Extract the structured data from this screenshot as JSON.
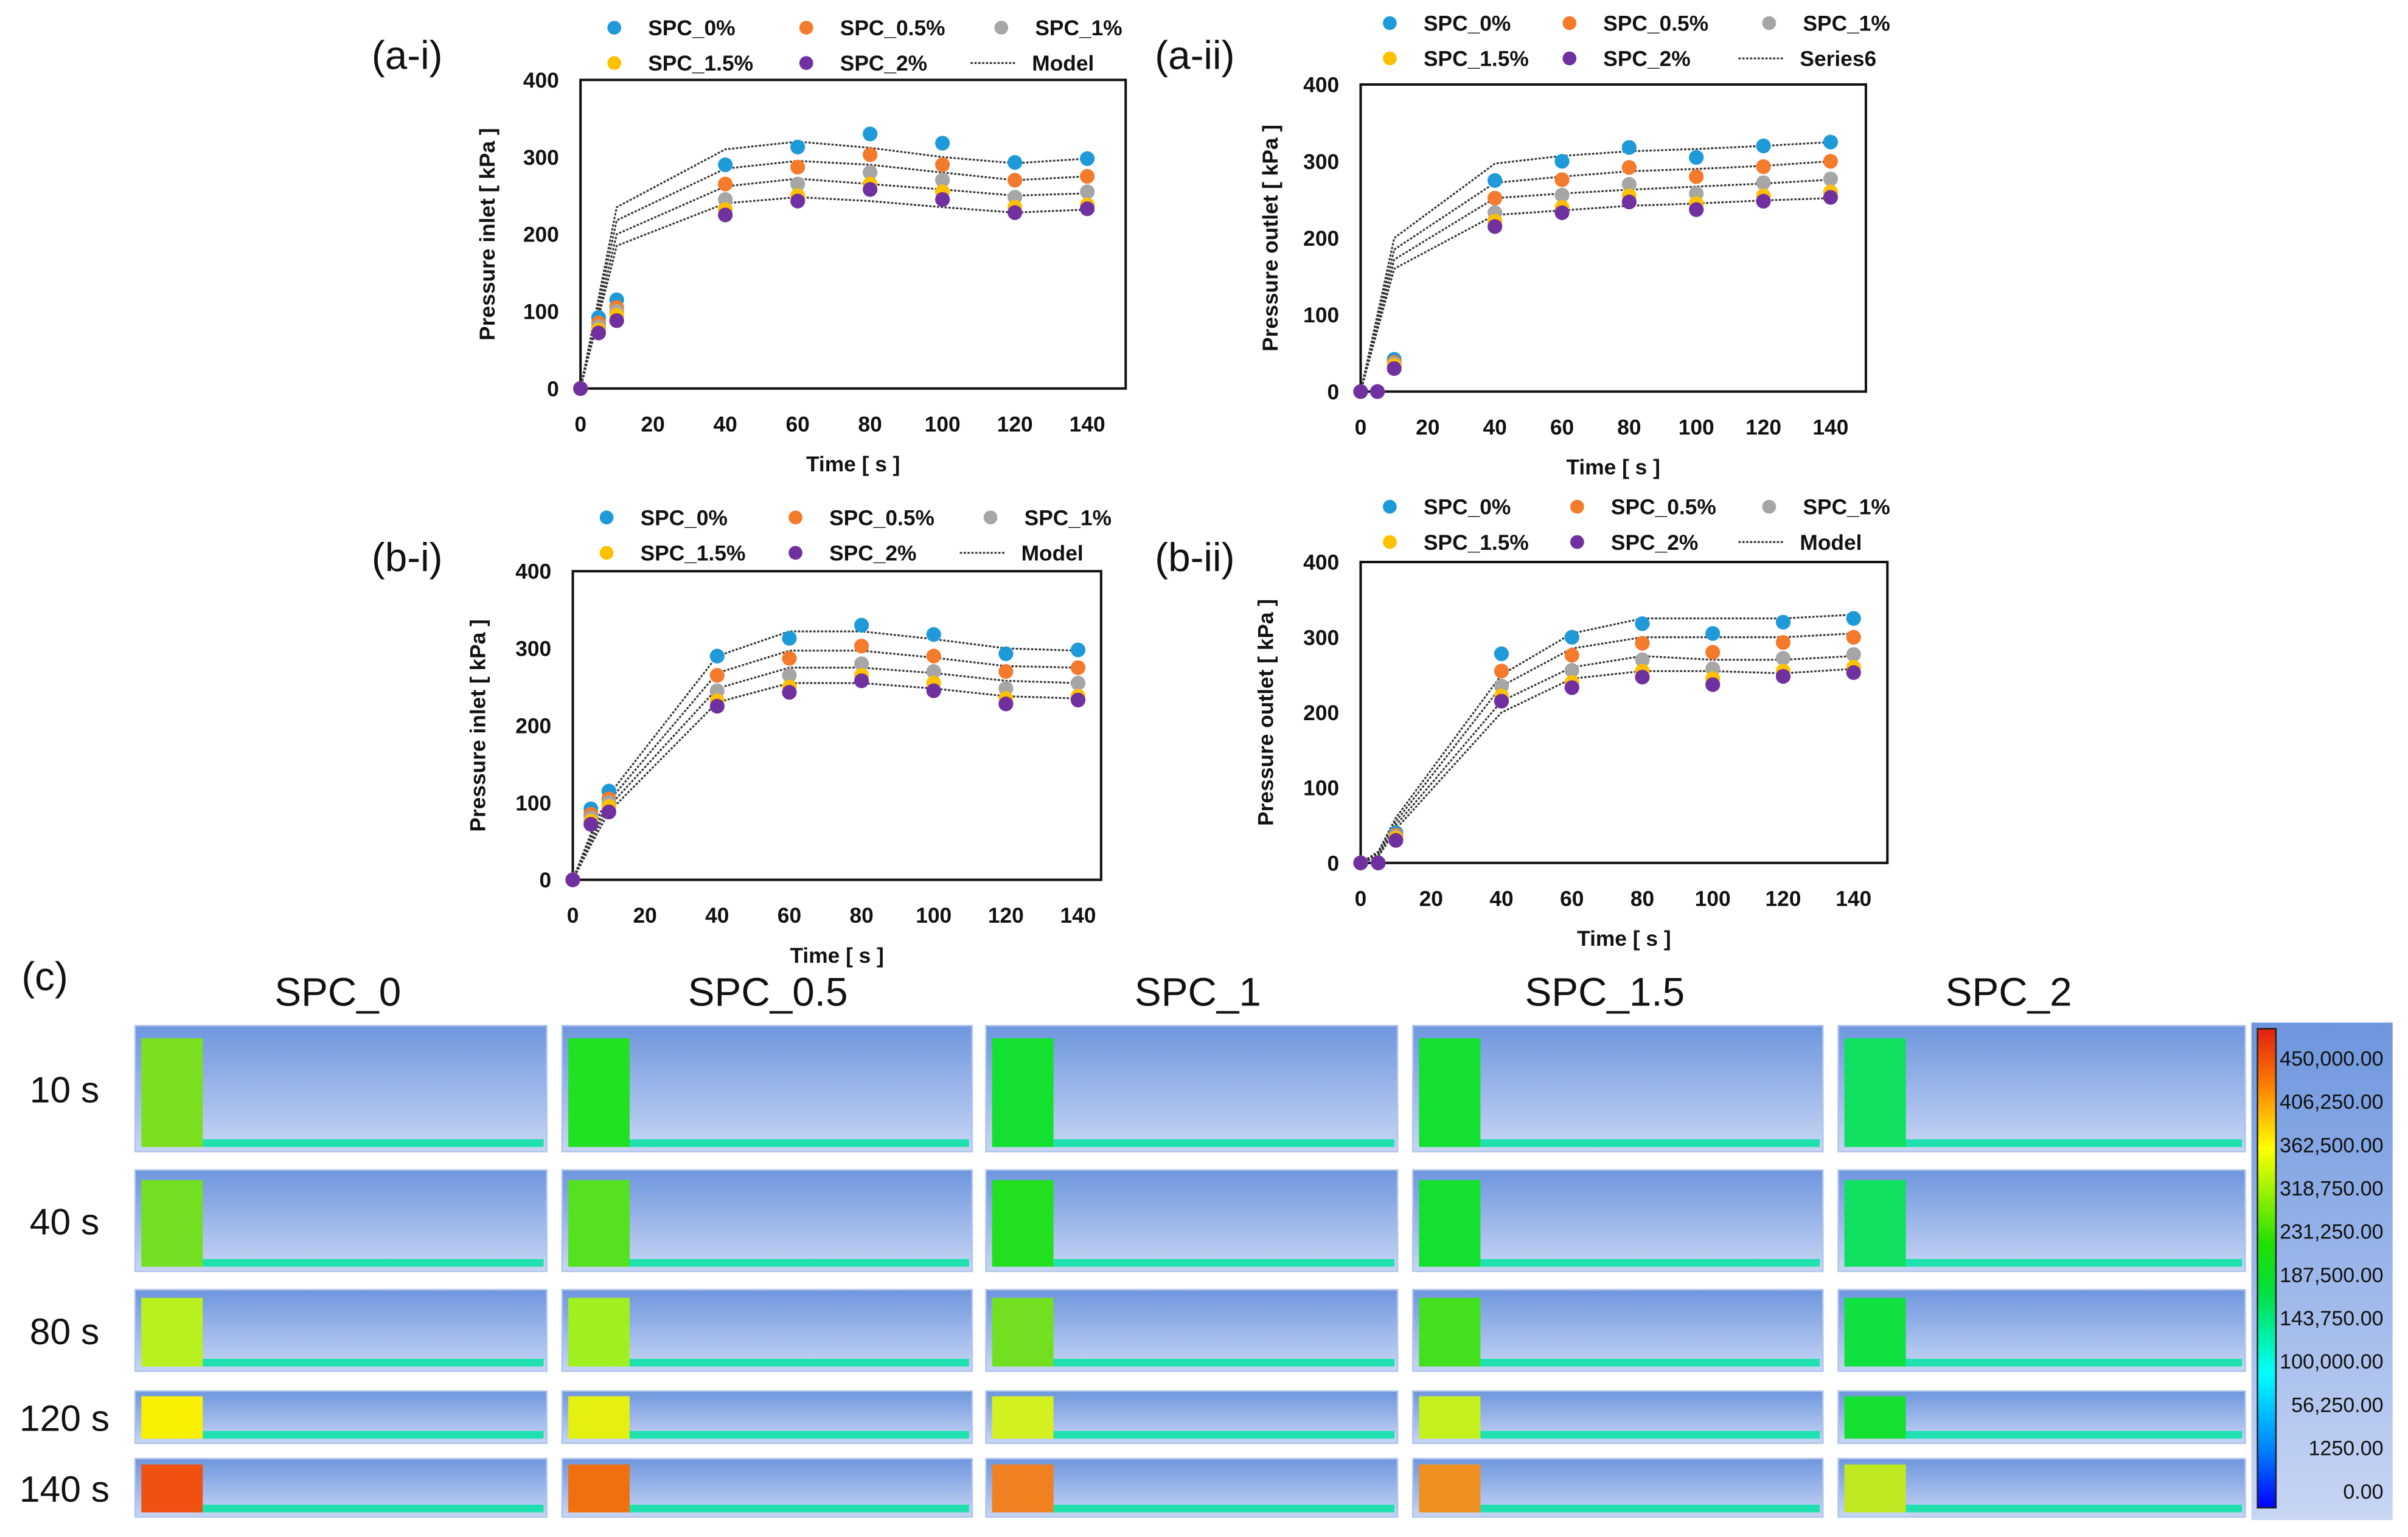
{
  "colors": {
    "SPC_0%": "#1f9ad8",
    "SPC_0.5%": "#f47a2c",
    "SPC_1%": "#a6a6a6",
    "SPC_1.5%": "#ffc000",
    "SPC_2%": "#7030a0",
    "model": "#333333"
  },
  "chart_data": [
    {
      "id": "a-i",
      "type": "scatter",
      "panel_label": "(a-i)",
      "xlabel": "Time [ s ]",
      "ylabel": "Pressure inlet [ kPa ]",
      "xlim": [
        0,
        150
      ],
      "ylim": [
        0,
        400
      ],
      "xticks": [
        "0",
        "20",
        "40",
        "60",
        "80",
        "100",
        "120",
        "140"
      ],
      "yticks": [
        "0",
        "100",
        "200",
        "300",
        "400"
      ],
      "model_label": "Model",
      "x": [
        0,
        5,
        10,
        40,
        60,
        80,
        100,
        120,
        140
      ],
      "series": [
        {
          "name": "SPC_0%",
          "values": [
            0,
            92,
            115,
            290,
            313,
            330,
            318,
            293,
            298
          ]
        },
        {
          "name": "SPC_0.5%",
          "values": [
            0,
            85,
            105,
            265,
            287,
            303,
            290,
            270,
            275
          ]
        },
        {
          "name": "SPC_1%",
          "values": [
            0,
            80,
            100,
            245,
            265,
            280,
            270,
            248,
            255
          ]
        },
        {
          "name": "SPC_1.5%",
          "values": [
            0,
            76,
            95,
            232,
            250,
            265,
            255,
            235,
            238
          ]
        },
        {
          "name": "SPC_2%",
          "values": [
            0,
            72,
            88,
            225,
            243,
            258,
            245,
            228,
            233
          ]
        }
      ],
      "model_x": [
        0,
        10,
        40,
        60,
        80,
        100,
        120,
        140
      ],
      "model": [
        [
          0,
          235,
          310,
          320,
          312,
          300,
          292,
          298
        ],
        [
          0,
          218,
          285,
          295,
          290,
          280,
          270,
          275
        ],
        [
          0,
          200,
          262,
          272,
          265,
          258,
          250,
          253
        ],
        [
          0,
          185,
          240,
          248,
          243,
          235,
          228,
          232
        ]
      ]
    },
    {
      "id": "a-ii",
      "type": "scatter",
      "panel_label": "(a-ii)",
      "xlabel": "Time [ s ]",
      "ylabel": "Pressure outlet [ kPa ]",
      "xlim": [
        0,
        150
      ],
      "ylim": [
        0,
        400
      ],
      "xticks": [
        "0",
        "20",
        "40",
        "60",
        "80",
        "100",
        "120",
        "140"
      ],
      "yticks": [
        "0",
        "100",
        "200",
        "300",
        "400"
      ],
      "model_label": "Series6",
      "x": [
        0,
        5,
        10,
        40,
        60,
        80,
        100,
        120,
        140
      ],
      "series": [
        {
          "name": "SPC_0%",
          "values": [
            0,
            0,
            42,
            275,
            300,
            318,
            305,
            320,
            325
          ]
        },
        {
          "name": "SPC_0.5%",
          "values": [
            0,
            0,
            38,
            252,
            276,
            292,
            280,
            293,
            300
          ]
        },
        {
          "name": "SPC_1%",
          "values": [
            0,
            0,
            36,
            233,
            256,
            270,
            258,
            272,
            277
          ]
        },
        {
          "name": "SPC_1.5%",
          "values": [
            0,
            0,
            34,
            222,
            240,
            255,
            245,
            255,
            260
          ]
        },
        {
          "name": "SPC_2%",
          "values": [
            0,
            0,
            30,
            215,
            233,
            247,
            237,
            248,
            253
          ]
        }
      ],
      "model_x": [
        0,
        10,
        40,
        60,
        80,
        100,
        120,
        140
      ],
      "model": [
        [
          0,
          200,
          297,
          307,
          313,
          316,
          320,
          325
        ],
        [
          0,
          185,
          272,
          280,
          287,
          290,
          294,
          300
        ],
        [
          0,
          172,
          252,
          258,
          263,
          267,
          271,
          276
        ],
        [
          0,
          160,
          230,
          236,
          242,
          245,
          249,
          252
        ]
      ]
    },
    {
      "id": "b-i",
      "type": "scatter",
      "panel_label": "(b-i)",
      "xlabel": "Time [ s ]",
      "ylabel": "Pressure inlet [ kPa ]",
      "xlim": [
        0,
        150
      ],
      "ylim": [
        0,
        400
      ],
      "xticks": [
        "0",
        "20",
        "40",
        "60",
        "80",
        "100",
        "120",
        "140"
      ],
      "yticks": [
        "0",
        "100",
        "200",
        "300",
        "400"
      ],
      "model_label": "Model",
      "x": [
        0,
        5,
        10,
        40,
        60,
        80,
        100,
        120,
        140
      ],
      "series": [
        {
          "name": "SPC_0%",
          "values": [
            0,
            92,
            115,
            290,
            313,
            330,
            318,
            293,
            298
          ]
        },
        {
          "name": "SPC_0.5%",
          "values": [
            0,
            85,
            105,
            265,
            287,
            303,
            290,
            270,
            275
          ]
        },
        {
          "name": "SPC_1%",
          "values": [
            0,
            80,
            100,
            245,
            265,
            280,
            270,
            248,
            255
          ]
        },
        {
          "name": "SPC_1.5%",
          "values": [
            0,
            76,
            95,
            232,
            250,
            265,
            255,
            235,
            238
          ]
        },
        {
          "name": "SPC_2%",
          "values": [
            0,
            72,
            88,
            225,
            243,
            258,
            245,
            228,
            233
          ]
        }
      ],
      "model_x": [
        0,
        5,
        10,
        40,
        60,
        80,
        100,
        120,
        140
      ],
      "model": [
        [
          0,
          60,
          110,
          290,
          322,
          322,
          312,
          300,
          297
        ],
        [
          0,
          55,
          102,
          268,
          297,
          297,
          288,
          277,
          275
        ],
        [
          0,
          50,
          95,
          248,
          275,
          275,
          268,
          258,
          255
        ],
        [
          0,
          45,
          88,
          230,
          255,
          255,
          248,
          238,
          235
        ]
      ]
    },
    {
      "id": "b-ii",
      "type": "scatter",
      "panel_label": "(b-ii)",
      "xlabel": "Time [ s ]",
      "ylabel": "Pressure outlet [ kPa ]",
      "xlim": [
        0,
        150
      ],
      "ylim": [
        0,
        400
      ],
      "xticks": [
        "0",
        "20",
        "40",
        "60",
        "80",
        "100",
        "120",
        "140"
      ],
      "yticks": [
        "0",
        "100",
        "200",
        "300",
        "400"
      ],
      "model_label": "Model",
      "x": [
        0,
        5,
        10,
        40,
        60,
        80,
        100,
        120,
        140
      ],
      "series": [
        {
          "name": "SPC_0%",
          "values": [
            0,
            0,
            40,
            278,
            300,
            318,
            305,
            320,
            325
          ]
        },
        {
          "name": "SPC_0.5%",
          "values": [
            0,
            0,
            37,
            255,
            276,
            292,
            280,
            293,
            300
          ]
        },
        {
          "name": "SPC_1%",
          "values": [
            0,
            0,
            35,
            235,
            256,
            270,
            258,
            272,
            277
          ]
        },
        {
          "name": "SPC_1.5%",
          "values": [
            0,
            0,
            33,
            222,
            240,
            255,
            245,
            255,
            260
          ]
        },
        {
          "name": "SPC_2%",
          "values": [
            0,
            0,
            30,
            215,
            233,
            247,
            237,
            248,
            253
          ]
        }
      ],
      "model_x": [
        0,
        5,
        10,
        40,
        60,
        80,
        100,
        120,
        140
      ],
      "model": [
        [
          0,
          15,
          60,
          250,
          305,
          325,
          325,
          325,
          330
        ],
        [
          0,
          12,
          55,
          235,
          285,
          300,
          300,
          300,
          305
        ],
        [
          0,
          10,
          50,
          215,
          260,
          275,
          270,
          270,
          275
        ],
        [
          0,
          8,
          45,
          200,
          245,
          255,
          255,
          252,
          258
        ]
      ]
    }
  ],
  "contours": {
    "panel_label": "(c)",
    "columns": [
      "SPC_0",
      "SPC_0.5",
      "SPC_1",
      "SPC_1.5",
      "SPC_2"
    ],
    "rows": [
      "10 s",
      "40 s",
      "80 s",
      "120 s",
      "140 s"
    ],
    "block_colors": [
      [
        "#7ae020",
        "#22e022",
        "#14e030",
        "#14e032",
        "#10e060"
      ],
      [
        "#72e020",
        "#55e020",
        "#22e020",
        "#14e030",
        "#10e060"
      ],
      [
        "#b8f020",
        "#a0f020",
        "#72e020",
        "#44e020",
        "#10e040"
      ],
      [
        "#f8f000",
        "#e4f010",
        "#d4f020",
        "#c4f020",
        "#14e030"
      ],
      [
        "#f05010",
        "#f07010",
        "#f08020",
        "#f09020",
        "#c0e820"
      ]
    ],
    "colorbar_labels": [
      "450,000.00",
      "406,250.00",
      "362,500.00",
      "318,750.00",
      "231,250.00",
      "187,500.00",
      "143,750.00",
      "100,000.00",
      "56,250.00",
      "1250.00",
      "0.00"
    ]
  }
}
